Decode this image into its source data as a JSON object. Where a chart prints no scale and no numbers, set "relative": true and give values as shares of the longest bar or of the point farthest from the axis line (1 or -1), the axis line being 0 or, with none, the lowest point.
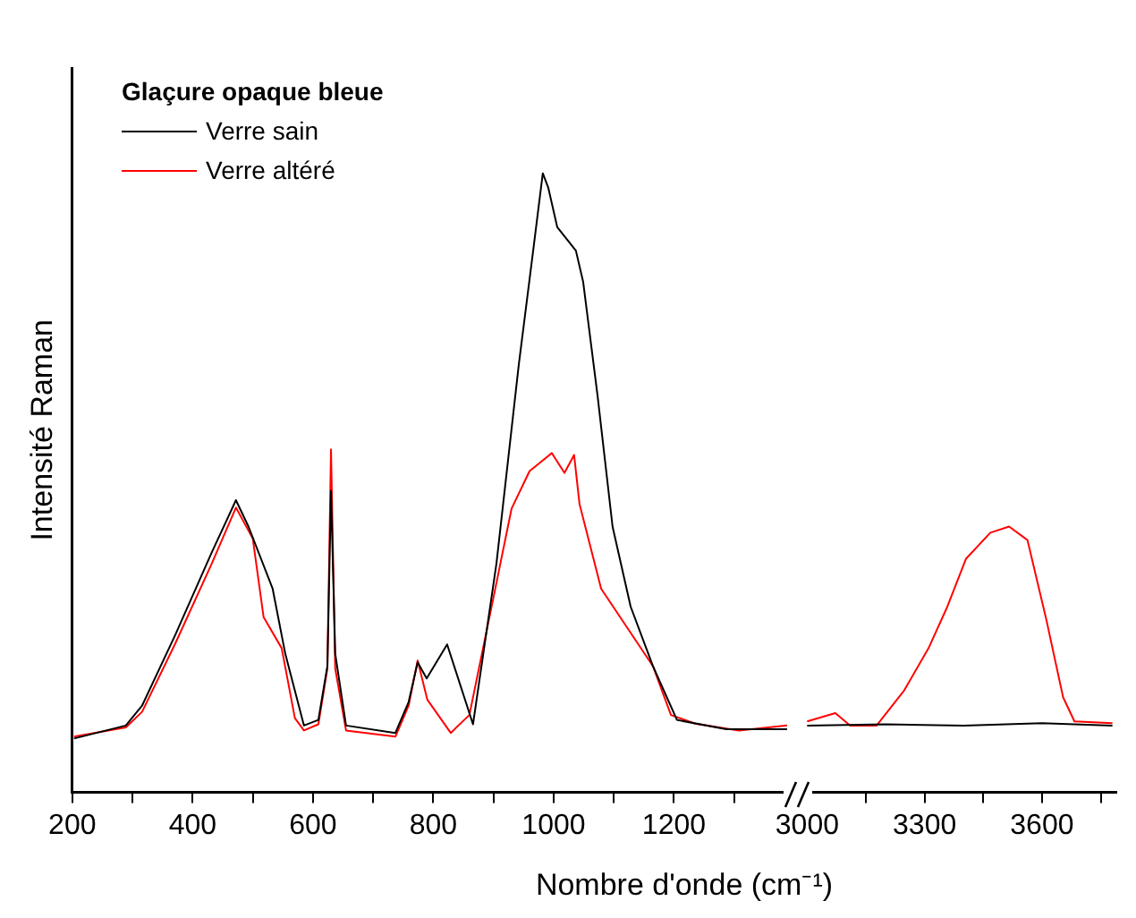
{
  "chart_data": [
    {
      "type": "line",
      "relative": true,
      "ylabel": "Intensité Raman",
      "xlabel": "Nombre d'onde (cm⁻¹)",
      "legend_title": "Glaçure opaque bleue",
      "legend": "top left",
      "grid": false,
      "xlim": [
        200,
        1400
      ],
      "xticks": [
        200,
        {
          "value": 300,
          "label": null
        },
        400,
        {
          "value": 500,
          "label": null
        },
        600,
        {
          "value": 700,
          "label": null
        },
        800,
        {
          "value": 900,
          "label": null
        },
        1000,
        {
          "value": 1100,
          "label": null
        },
        1200,
        {
          "value": 1300,
          "label": null
        }
      ],
      "series": [
        {
          "name": "Verre sain",
          "color": "#000000",
          "x": [
            203,
            289,
            316,
            371,
            432,
            472,
            493,
            533,
            554,
            585,
            609,
            624,
            630,
            637,
            655,
            737,
            759,
            774,
            789,
            823,
            866,
            905,
            942,
            966,
            982,
            991,
            1006,
            1037,
            1049,
            1073,
            1098,
            1128,
            1165,
            1205,
            1287,
            1388
          ],
          "values": [
            0.087,
            0.108,
            0.14,
            0.254,
            0.388,
            0.472,
            0.429,
            0.329,
            0.224,
            0.108,
            0.117,
            0.204,
            0.487,
            0.224,
            0.108,
            0.096,
            0.146,
            0.21,
            0.184,
            0.239,
            0.11,
            0.37,
            0.69,
            0.875,
            1.0,
            0.977,
            0.913,
            0.875,
            0.825,
            0.641,
            0.429,
            0.3,
            0.204,
            0.117,
            0.102,
            0.102
          ]
        },
        {
          "name": "Verre altéré",
          "color": "#ff0000",
          "x": [
            203,
            289,
            316,
            371,
            432,
            472,
            500,
            518,
            548,
            570,
            585,
            609,
            624,
            630,
            637,
            655,
            737,
            759,
            774,
            790,
            829,
            860,
            899,
            930,
            960,
            997,
            1018,
            1034,
            1043,
            1079,
            1125,
            1165,
            1195,
            1235,
            1308,
            1388
          ],
          "values": [
            0.09,
            0.105,
            0.13,
            0.24,
            0.37,
            0.46,
            0.41,
            0.283,
            0.233,
            0.12,
            0.1,
            0.11,
            0.2,
            0.554,
            0.2,
            0.1,
            0.09,
            0.14,
            0.213,
            0.15,
            0.096,
            0.125,
            0.31,
            0.458,
            0.519,
            0.548,
            0.516,
            0.545,
            0.466,
            0.329,
            0.262,
            0.204,
            0.125,
            0.111,
            0.1,
            0.108
          ]
        }
      ]
    },
    {
      "type": "line",
      "relative": true,
      "tick_labels": "x",
      "grid": false,
      "xlim": [
        2990,
        3790
      ],
      "xticks": [
        3000,
        {
          "value": 3150,
          "label": null
        },
        3300,
        {
          "value": 3450,
          "label": null
        },
        3600,
        {
          "value": 3750,
          "label": null
        }
      ],
      "series": [
        {
          "color": "#000000",
          "x": [
            3000,
            3200,
            3400,
            3600,
            3780
          ],
          "values": [
            0.251,
            0.256,
            0.251,
            0.26,
            0.251
          ]
        },
        {
          "color": "#ff0000",
          "x": [
            3000,
            3072,
            3110,
            3177,
            3248,
            3310,
            3358,
            3406,
            3468,
            3516,
            3563,
            3611,
            3654,
            3683,
            3780
          ],
          "values": [
            0.267,
            0.298,
            0.251,
            0.251,
            0.384,
            0.542,
            0.698,
            0.879,
            0.977,
            1.0,
            0.949,
            0.651,
            0.358,
            0.267,
            0.26
          ]
        }
      ]
    }
  ]
}
